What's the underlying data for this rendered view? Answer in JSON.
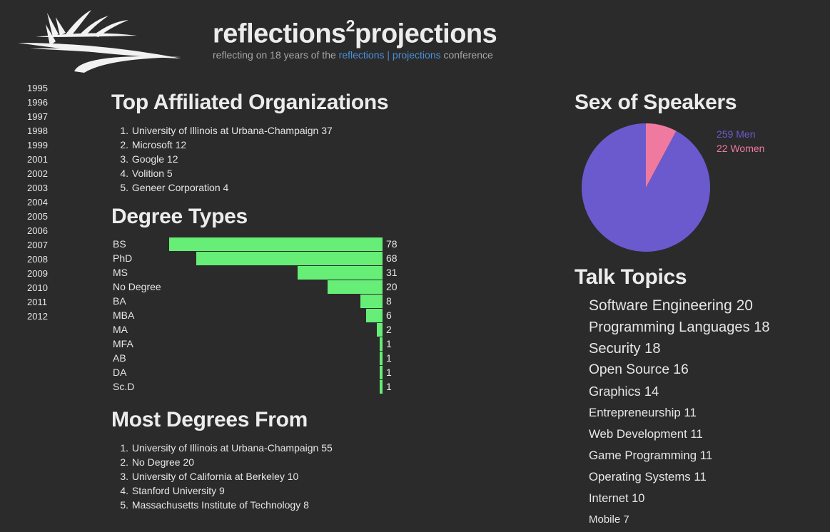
{
  "header": {
    "title_part1": "reflections",
    "title_sup": "2",
    "title_part2": "projections",
    "tagline_prefix": "reflecting on 18 years of the ",
    "link_reflections": "reflections",
    "link_separator": "|",
    "link_projections": "projections",
    "tagline_suffix": " conference"
  },
  "years": [
    "1995",
    "1996",
    "1997",
    "1998",
    "1999",
    "2001",
    "2002",
    "2003",
    "2004",
    "2005",
    "2006",
    "2007",
    "2008",
    "2009",
    "2010",
    "2011",
    "2012"
  ],
  "organizations": {
    "title": "Top Affiliated Organizations",
    "items": [
      {
        "num": "1.",
        "text": "University of Illinois at Urbana-Champaign 37"
      },
      {
        "num": "2.",
        "text": "Microsoft 12"
      },
      {
        "num": "3.",
        "text": "Google 12"
      },
      {
        "num": "4.",
        "text": "Volition 5"
      },
      {
        "num": "5.",
        "text": "Geneer Corporation 4"
      }
    ]
  },
  "degree_types": {
    "title": "Degree Types",
    "bar_color": "#66ee77",
    "chart_data": {
      "type": "bar",
      "categories": [
        "BS",
        "PhD",
        "MS",
        "No Degree",
        "BA",
        "MBA",
        "MA",
        "MFA",
        "AB",
        "DA",
        "Sc.D"
      ],
      "values": [
        78,
        68,
        31,
        20,
        8,
        6,
        2,
        1,
        1,
        1,
        1
      ],
      "max_value": 78
    }
  },
  "degrees_from": {
    "title": "Most Degrees From",
    "items": [
      {
        "num": "1.",
        "text": "University of Illinois at Urbana-Champaign 55"
      },
      {
        "num": "2.",
        "text": "No Degree 20"
      },
      {
        "num": "3.",
        "text": "University of California at Berkeley 10"
      },
      {
        "num": "4.",
        "text": "Stanford University 9"
      },
      {
        "num": "5.",
        "text": "Massachusetts Institute of Technology 8"
      }
    ]
  },
  "sex": {
    "title": "Sex of Speakers",
    "chart_data": {
      "type": "pie",
      "labels": [
        "259 Men",
        "22 Women"
      ],
      "values": [
        259,
        22
      ],
      "colors": [
        "#6a5acd",
        "#f07a9f"
      ]
    }
  },
  "topics": {
    "title": "Talk Topics",
    "items": [
      {
        "text": "Software Engineering 20",
        "count": 20
      },
      {
        "text": "Programming Languages 18",
        "count": 18
      },
      {
        "text": "Security 18",
        "count": 18
      },
      {
        "text": "Open Source 16",
        "count": 16
      },
      {
        "text": "Graphics 14",
        "count": 14
      },
      {
        "text": "Entrepreneurship 11",
        "count": 11
      },
      {
        "text": "Web Development 11",
        "count": 11
      },
      {
        "text": "Game Programming 11",
        "count": 11
      },
      {
        "text": "Operating Systems 11",
        "count": 11
      },
      {
        "text": "Internet 10",
        "count": 10
      },
      {
        "text": "Mobile 7",
        "count": 7
      }
    ]
  },
  "colors": {
    "background": "#2b2b2b",
    "link": "#4a90d9",
    "bar": "#66ee77",
    "men": "#6a5acd",
    "women": "#f07a9f"
  }
}
